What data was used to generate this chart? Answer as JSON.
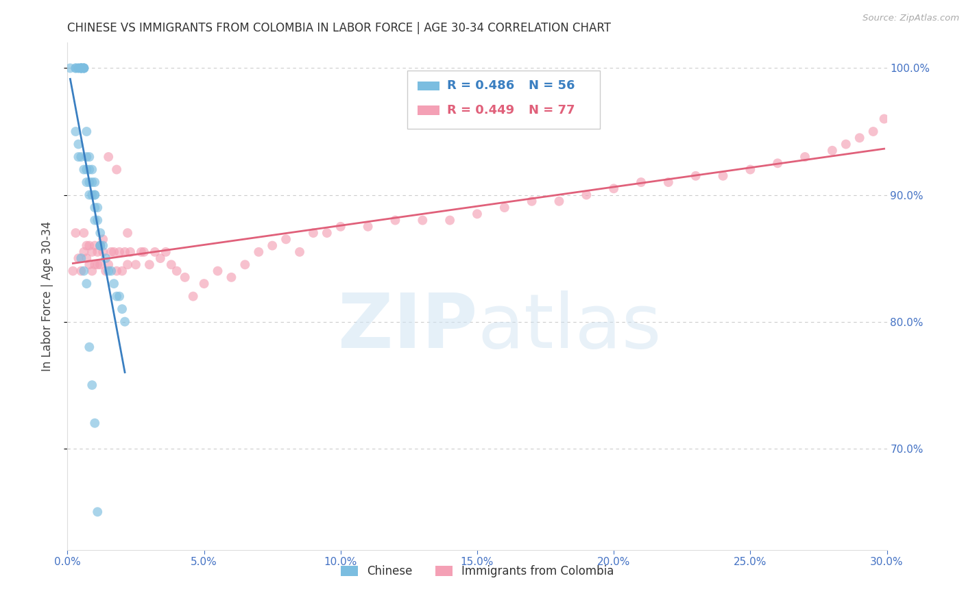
{
  "title": "CHINESE VS IMMIGRANTS FROM COLOMBIA IN LABOR FORCE | AGE 30-34 CORRELATION CHART",
  "source": "Source: ZipAtlas.com",
  "ylabel": "In Labor Force | Age 30-34",
  "xlim": [
    0.0,
    0.3
  ],
  "ylim": [
    0.62,
    1.02
  ],
  "yticks": [
    0.7,
    0.8,
    0.9,
    1.0
  ],
  "xticks": [
    0.0,
    0.05,
    0.1,
    0.15,
    0.2,
    0.25,
    0.3
  ],
  "ytick_labels": [
    "70.0%",
    "80.0%",
    "90.0%",
    "100.0%"
  ],
  "xtick_labels": [
    "0.0%",
    "5.0%",
    "10.0%",
    "15.0%",
    "20.0%",
    "25.0%",
    "30.0%"
  ],
  "legend_r_chinese": "R = 0.486",
  "legend_n_chinese": "N = 56",
  "legend_r_colombia": "R = 0.449",
  "legend_n_colombia": "N = 77",
  "chinese_color": "#7bbde0",
  "colombia_color": "#f4a0b5",
  "chinese_line_color": "#3a7fc1",
  "colombia_line_color": "#e0607a",
  "tick_color": "#4472c4",
  "grid_color": "#cccccc",
  "chinese_x": [
    0.001,
    0.003,
    0.003,
    0.004,
    0.004,
    0.005,
    0.005,
    0.005,
    0.005,
    0.005,
    0.006,
    0.006,
    0.006,
    0.006,
    0.007,
    0.007,
    0.007,
    0.008,
    0.008,
    0.008,
    0.009,
    0.009,
    0.009,
    0.01,
    0.01,
    0.01,
    0.01,
    0.011,
    0.011,
    0.012,
    0.012,
    0.013,
    0.014,
    0.015,
    0.016,
    0.017,
    0.018,
    0.019,
    0.02,
    0.021,
    0.003,
    0.004,
    0.004,
    0.005,
    0.006,
    0.007,
    0.008,
    0.01,
    0.012,
    0.005,
    0.006,
    0.007,
    0.008,
    0.009,
    0.01,
    0.011
  ],
  "chinese_y": [
    1.0,
    1.0,
    1.0,
    1.0,
    1.0,
    1.0,
    1.0,
    1.0,
    1.0,
    1.0,
    1.0,
    1.0,
    1.0,
    1.0,
    0.95,
    0.93,
    0.92,
    0.92,
    0.91,
    0.93,
    0.92,
    0.91,
    0.9,
    0.9,
    0.91,
    0.9,
    0.89,
    0.89,
    0.88,
    0.87,
    0.86,
    0.86,
    0.85,
    0.84,
    0.84,
    0.83,
    0.82,
    0.82,
    0.81,
    0.8,
    0.95,
    0.94,
    0.93,
    0.93,
    0.92,
    0.91,
    0.9,
    0.88,
    0.86,
    0.85,
    0.84,
    0.83,
    0.78,
    0.75,
    0.72,
    0.65
  ],
  "colombia_x": [
    0.002,
    0.003,
    0.004,
    0.005,
    0.006,
    0.006,
    0.007,
    0.007,
    0.008,
    0.008,
    0.009,
    0.009,
    0.01,
    0.01,
    0.011,
    0.011,
    0.012,
    0.012,
    0.013,
    0.013,
    0.014,
    0.015,
    0.016,
    0.017,
    0.018,
    0.019,
    0.02,
    0.021,
    0.022,
    0.023,
    0.025,
    0.027,
    0.028,
    0.03,
    0.032,
    0.034,
    0.036,
    0.038,
    0.04,
    0.043,
    0.046,
    0.05,
    0.055,
    0.06,
    0.065,
    0.07,
    0.075,
    0.08,
    0.085,
    0.09,
    0.095,
    0.1,
    0.11,
    0.12,
    0.13,
    0.14,
    0.15,
    0.16,
    0.17,
    0.18,
    0.19,
    0.2,
    0.21,
    0.22,
    0.23,
    0.24,
    0.25,
    0.26,
    0.27,
    0.28,
    0.285,
    0.29,
    0.295,
    0.299,
    0.015,
    0.018,
    0.022
  ],
  "colombia_y": [
    0.84,
    0.87,
    0.85,
    0.84,
    0.855,
    0.87,
    0.85,
    0.86,
    0.845,
    0.86,
    0.84,
    0.855,
    0.845,
    0.86,
    0.845,
    0.855,
    0.845,
    0.86,
    0.855,
    0.865,
    0.84,
    0.845,
    0.855,
    0.855,
    0.84,
    0.855,
    0.84,
    0.855,
    0.845,
    0.855,
    0.845,
    0.855,
    0.855,
    0.845,
    0.855,
    0.85,
    0.855,
    0.845,
    0.84,
    0.835,
    0.82,
    0.83,
    0.84,
    0.835,
    0.845,
    0.855,
    0.86,
    0.865,
    0.855,
    0.87,
    0.87,
    0.875,
    0.875,
    0.88,
    0.88,
    0.88,
    0.885,
    0.89,
    0.895,
    0.895,
    0.9,
    0.905,
    0.91,
    0.91,
    0.915,
    0.915,
    0.92,
    0.925,
    0.93,
    0.935,
    0.94,
    0.945,
    0.95,
    0.96,
    0.93,
    0.92,
    0.87
  ]
}
